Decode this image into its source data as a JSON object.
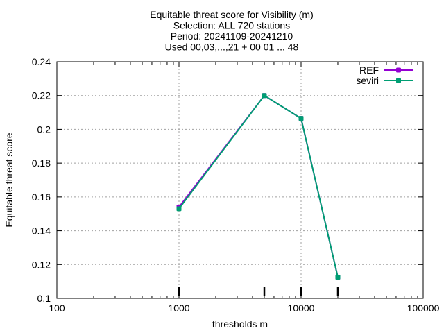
{
  "chart_data": {
    "type": "line",
    "title_lines": [
      "Equitable threat score  for Visibility (m)",
      "Selection: ALL    720 stations",
      "Period: 20241109-20241210",
      "Used 00,03,...,21 + 00 01 ... 48"
    ],
    "xlabel": "thresholds m",
    "ylabel": "Equitable threat score",
    "x_scale": "log",
    "xlim": [
      100,
      100000
    ],
    "ylim": [
      0.1,
      0.24
    ],
    "x_ticks": [
      100,
      1000,
      10000,
      100000
    ],
    "x_tick_labels": [
      "100",
      "1000",
      "10000",
      "100000"
    ],
    "y_ticks": [
      0.1,
      0.12,
      0.14,
      0.16,
      0.18,
      0.2,
      0.22,
      0.24
    ],
    "y_tick_labels": [
      "0.1",
      "0.12",
      "0.14",
      "0.16",
      "0.18",
      "0.2",
      "0.22",
      "0.24"
    ],
    "grid": true,
    "legend_position": "top-right",
    "x": [
      1000,
      5000,
      10000,
      20000
    ],
    "series": [
      {
        "name": "REF",
        "color": "#9400d3",
        "values": [
          0.154,
          0.22,
          0.2065,
          0.1125
        ]
      },
      {
        "name": "seviri",
        "color": "#009e73",
        "values": [
          0.153,
          0.22,
          0.2065,
          0.1125
        ]
      }
    ],
    "threshold_markers": [
      1000,
      5000,
      10000,
      20000
    ]
  }
}
